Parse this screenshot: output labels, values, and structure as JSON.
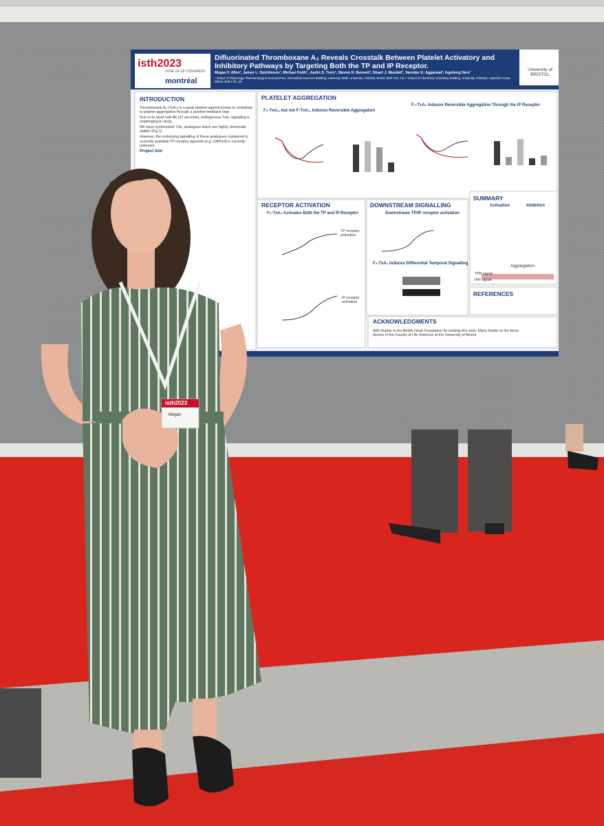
{
  "poster": {
    "logo": {
      "brand": "isth2023",
      "dates": "JUNE 24–28 CONGRESS",
      "city": "montréal"
    },
    "title": "Difluorinated Thromboxane A₂ Reveals Crosstalk Between Platelet Activatory and Inhibitory Pathways by Targeting Both the TP and IP Receptor.",
    "authors": "Megan F. Allen¹, James L. Hutchinson¹, Michael Keith¹, Justin S. Trory¹, Steven H. Bennett², Stuart J. Mundell¹, Varinder K. Aggarwal², Ingeborg Hers¹",
    "affiliation": "¹ School of Physiology, Pharmacology & Neuroscience, Biomedical Sciences Building, University Walk, University of Bristol, Bristol, BS8 1TD, UK. ² School of Chemistry, Chemistry Building, University of Bristol, Cantock's Close, Bristol, BS8 1TS, UK.",
    "university": "University of BRISTOL",
    "introduction": {
      "heading": "INTRODUCTION",
      "bullets": [
        "Thromboxane A₂ (TxA₂) is a weak platelet agonist known to contribute to platelet aggregation through a positive feedback loop",
        "Due to its short half-life (32 seconds), endogenous TxA₂ signalling is challenging to study.",
        "We have synthesised TxA₂ analogues which are highly chemically stable! (Fig 1)",
        "However, the underlying signalling of these analogues compared to currently available TP receptor agonists (e.g. U46619) is currently unknown."
      ],
      "aim": "Project Aim"
    },
    "aggregation": {
      "heading": "PLATELET AGGREGATION",
      "sub_a": "F₂-TxA₂, but not F-TxA₂, Induces Reversible Aggregation",
      "sub_b": "F₂-TxA₂ Induces Reversible Aggregation Through the IP Receptor"
    },
    "receptor": {
      "heading": "RECEPTOR ACTIVATION",
      "sub": "F₂-TxA₂ Activates Both the TP and IP Receptor",
      "tp": "TP receptor activation",
      "ip": "IP receptor activation"
    },
    "downstream": {
      "heading": "DOWNSTREAM SIGNALLING",
      "sub_a": "Downstream TP/IP receptor activation",
      "sub_b": "F₂-TxA₂ Induces Differential Temporal Signalling"
    },
    "summary": {
      "heading": "SUMMARY",
      "activation": "Activation",
      "inhibition": "Inhibition",
      "aggregation": "Aggregation",
      "tpr": "TPR signal",
      "ipr": "IPR signal"
    },
    "references": {
      "heading": "REFERENCES"
    },
    "acknowledgments": {
      "heading": "ACKNOWLEDGMENTS",
      "text": "With thanks to the British Heart Foundation for funding this work. Many thanks to the blood donors of the Faculty of Life Sciences at the University of Bristol."
    }
  },
  "badge": {
    "brand": "isth2023",
    "name": "Megan"
  }
}
